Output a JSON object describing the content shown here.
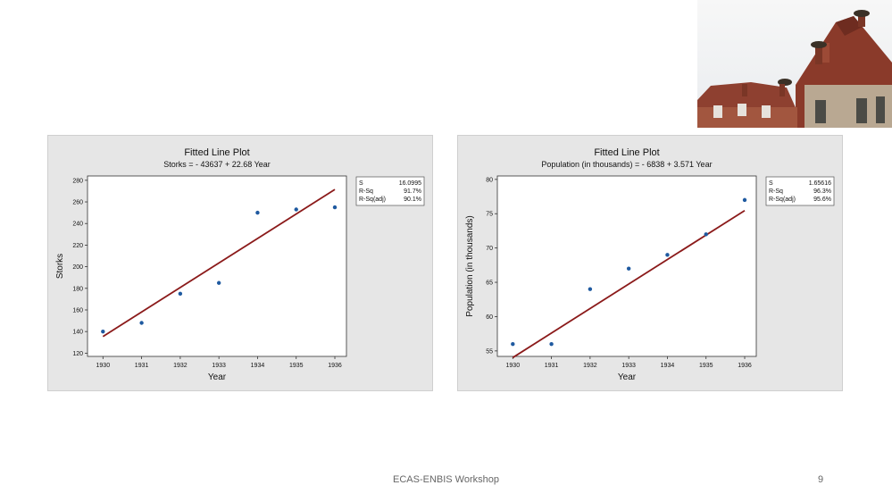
{
  "footer": {
    "text": "ECAS-ENBIS Workshop",
    "page": "9"
  },
  "colors": {
    "panel_bg": "#e6e6e6",
    "fit_line": "#8b1a1a",
    "points": "#1f5aa0"
  },
  "chart_data": [
    {
      "type": "scatter",
      "title": "Fitted Line Plot",
      "subtitle": "Storks = - 43637 + 22.68 Year",
      "xlabel": "Year",
      "ylabel": "Storks",
      "xlim": [
        1929.6,
        1936.3
      ],
      "ylim": [
        117,
        284
      ],
      "xticks": [
        1930,
        1931,
        1932,
        1933,
        1934,
        1935,
        1936
      ],
      "yticks": [
        120,
        140,
        160,
        180,
        200,
        220,
        240,
        260,
        280
      ],
      "x": [
        1930,
        1931,
        1932,
        1933,
        1934,
        1935,
        1936
      ],
      "y": [
        140,
        148,
        175,
        185,
        250,
        253,
        255
      ],
      "fit": {
        "intercept": -43637,
        "slope": 22.68
      },
      "stats": [
        {
          "label": "S",
          "value": "16.0995"
        },
        {
          "label": "R-Sq",
          "value": "91.7%"
        },
        {
          "label": "R-Sq(adj)",
          "value": "90.1%"
        }
      ]
    },
    {
      "type": "scatter",
      "title": "Fitted Line Plot",
      "subtitle": "Population (in thousands) = - 6838 + 3.571 Year",
      "xlabel": "Year",
      "ylabel": "Population (in thousands)",
      "xlim": [
        1929.6,
        1936.3
      ],
      "ylim": [
        54.2,
        80.5
      ],
      "xticks": [
        1930,
        1931,
        1932,
        1933,
        1934,
        1935,
        1936
      ],
      "yticks": [
        55,
        60,
        65,
        70,
        75,
        80
      ],
      "x": [
        1930,
        1931,
        1932,
        1933,
        1934,
        1935,
        1936
      ],
      "y": [
        56,
        56,
        64,
        67,
        69,
        72,
        77
      ],
      "fit": {
        "intercept": -6838,
        "slope": 3.571
      },
      "stats": [
        {
          "label": "S",
          "value": "1.65616"
        },
        {
          "label": "R-Sq",
          "value": "96.3%"
        },
        {
          "label": "R-Sq(adj)",
          "value": "95.6%"
        }
      ]
    }
  ]
}
